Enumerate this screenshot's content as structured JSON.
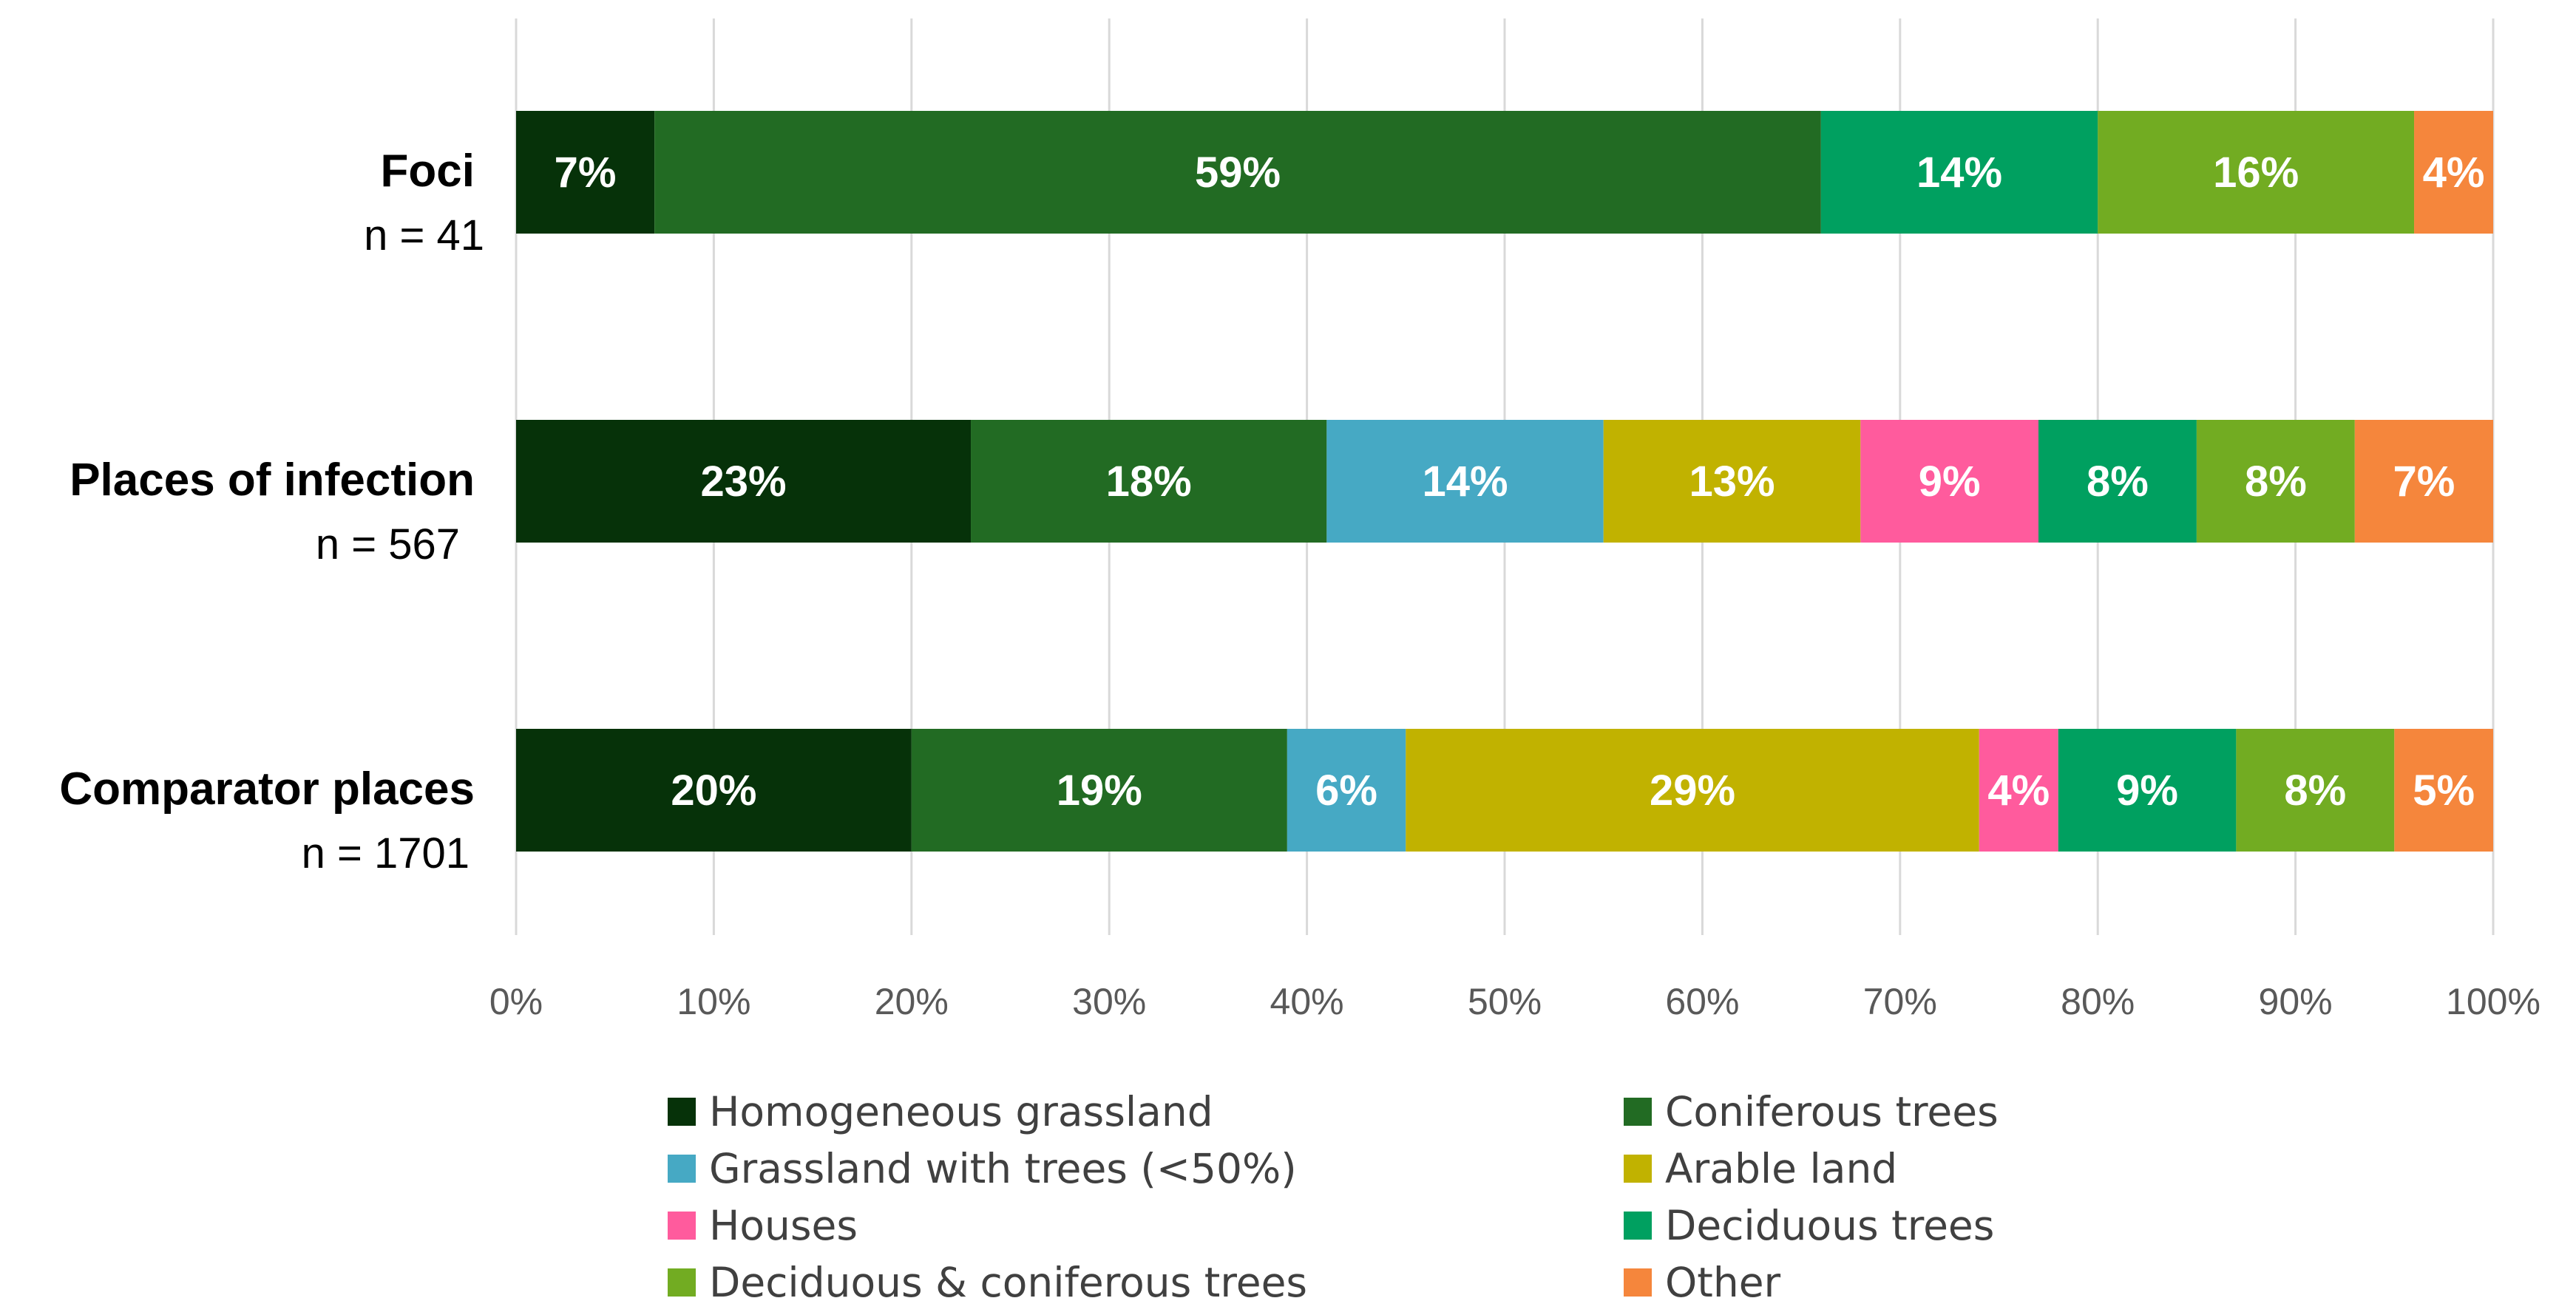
{
  "chart_data": {
    "type": "bar",
    "orientation": "horizontal",
    "stacked": true,
    "title": "",
    "xlabel": "",
    "ylabel": "",
    "xlim": [
      0,
      100
    ],
    "x_ticks": [
      "0%",
      "10%",
      "20%",
      "30%",
      "40%",
      "50%",
      "60%",
      "70%",
      "80%",
      "90%",
      "100%"
    ],
    "grid": true,
    "legend_position": "bottom",
    "categories": [
      {
        "name": "Foci",
        "n_label": "n = 41"
      },
      {
        "name": "Places of infection",
        "n_label": "n = 567"
      },
      {
        "name": "Comparator places",
        "n_label": "n = 1701"
      }
    ],
    "series": [
      {
        "name": "Homogeneous grassland",
        "color": "#063209",
        "values": [
          7,
          23,
          20
        ],
        "labels": [
          "7%",
          "23%",
          "20%"
        ]
      },
      {
        "name": "Coniferous trees",
        "color": "#226b23",
        "values": [
          59,
          18,
          19
        ],
        "labels": [
          "59%",
          "18%",
          "19%"
        ]
      },
      {
        "name": "Grassland with trees (<50%)",
        "color": "#46a9c4",
        "values": [
          0,
          14,
          6
        ],
        "labels": [
          "",
          "14%",
          "6%"
        ]
      },
      {
        "name": "Arable land",
        "color": "#c1b200",
        "values": [
          0,
          13,
          29
        ],
        "labels": [
          "",
          "13%",
          "29%"
        ]
      },
      {
        "name": "Houses",
        "color": "#ff5b9d",
        "values": [
          0,
          9,
          4
        ],
        "labels": [
          "",
          "9%",
          "4%"
        ]
      },
      {
        "name": "Deciduous trees",
        "color": "#00a060",
        "values": [
          14,
          8,
          9
        ],
        "labels": [
          "14%",
          "8%",
          "9%"
        ]
      },
      {
        "name": "Deciduous & coniferous trees",
        "color": "#72ac22",
        "values": [
          16,
          8,
          8
        ],
        "labels": [
          "16%",
          "8%",
          "8%"
        ]
      },
      {
        "name": "Other",
        "color": "#f5863c",
        "values": [
          4,
          7,
          5
        ],
        "labels": [
          "4%",
          "7%",
          "5%"
        ]
      }
    ]
  }
}
